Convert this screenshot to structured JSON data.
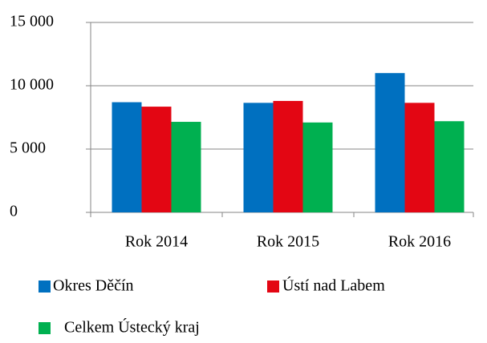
{
  "chart_data": {
    "type": "bar",
    "categories": [
      "Rok 2014",
      "Rok 2015",
      "Rok 2016"
    ],
    "series": [
      {
        "name": "Okres Děčín",
        "color": "#0070c0",
        "values": [
          8700,
          8650,
          11000
        ]
      },
      {
        "name": "Ústí nad Labem",
        "color": "#e30613",
        "values": [
          8350,
          8800,
          8650
        ]
      },
      {
        "name": "Celkem Ústecký kraj",
        "color": "#00b050",
        "values": [
          7150,
          7100,
          7200
        ]
      }
    ],
    "ylim": [
      0,
      15000
    ],
    "yticks": [
      0,
      {
        "value": 5000,
        "label": "5 000"
      },
      {
        "value": 10000,
        "label": "10 000"
      },
      {
        "value": 15000,
        "label": "15 000"
      }
    ],
    "grid": true,
    "legend": "bottom"
  }
}
